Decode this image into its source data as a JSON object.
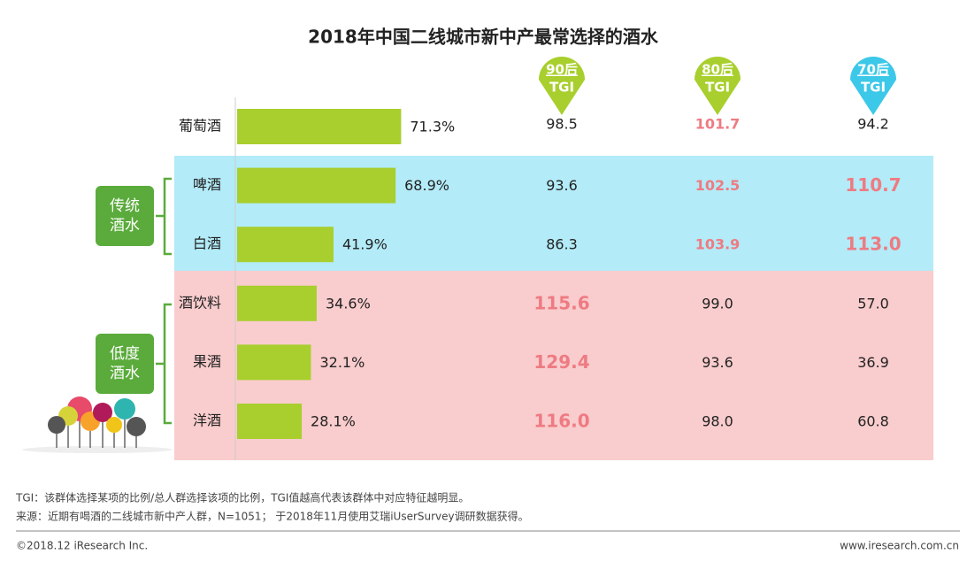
{
  "chart_data": {
    "type": "bar",
    "title": "2018年中国二线城市新中产最常选择的酒水",
    "categories": [
      "葡萄酒",
      "啤酒",
      "白酒",
      "酒饮料",
      "果酒",
      "洋酒"
    ],
    "values": [
      71.3,
      68.9,
      41.9,
      34.6,
      32.1,
      28.1
    ],
    "value_labels": [
      "71.3%",
      "68.9%",
      "41.9%",
      "34.6%",
      "32.1%",
      "28.1%"
    ],
    "color": "#a8cf2d",
    "groups": [
      "传统酒水",
      "低度酒水"
    ],
    "tgi_columns": [
      {
        "name": "90后",
        "label": "TGI",
        "color": "#a8cf2d",
        "values": [
          98.5,
          93.6,
          86.3,
          115.6,
          129.4,
          116.0
        ],
        "value_labels": [
          "98.5",
          "93.6",
          "86.3",
          "115.6",
          "129.4",
          "116.0"
        ]
      },
      {
        "name": "80后",
        "label": "TGI",
        "color": "#a8cf2d",
        "values": [
          101.7,
          102.5,
          103.9,
          99.0,
          93.6,
          98.0
        ],
        "value_labels": [
          "101.7",
          "102.5",
          "103.9",
          "99.0",
          "93.6",
          "98.0"
        ]
      },
      {
        "name": "70后",
        "label": "TGI",
        "color": "#3cc8e8",
        "values": [
          94.2,
          110.7,
          113.0,
          57.0,
          36.9,
          60.8
        ],
        "value_labels": [
          "94.2",
          "110.7",
          "113.0",
          "57.0",
          "36.9",
          "60.8"
        ]
      }
    ]
  },
  "footnotes": [
    "TGI：该群体选择某项的比例/总人群选择该项的比例，TGI值越高代表该群体中对应特征越明显。",
    "来源：近期有喝酒的二线城市新中产人群，N=1051； 于2018年11月使用艾瑞iUserSurvey调研数据获得。"
  ],
  "footer": {
    "copyright": "©2018.12 iResearch Inc.",
    "url": "www.iresearch.com.cn"
  }
}
